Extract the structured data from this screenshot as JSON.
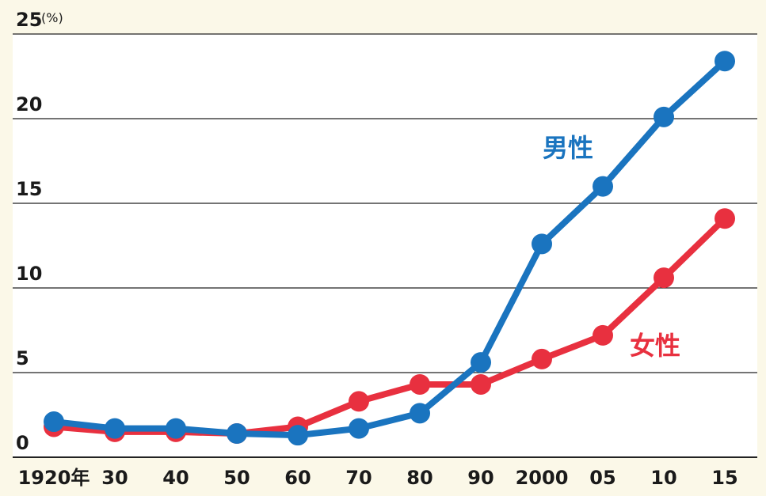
{
  "chart_data": {
    "type": "line",
    "title": "",
    "xlabel": "",
    "ylabel": "",
    "y_unit": "(%)",
    "ylim": [
      0,
      25
    ],
    "y_ticks": [
      "0",
      "5",
      "10",
      "15",
      "20",
      "25"
    ],
    "categories": [
      "1920年",
      "30",
      "40",
      "50",
      "60",
      "70",
      "80",
      "90",
      "2000",
      "05",
      "10",
      "15"
    ],
    "grid": true,
    "series": [
      {
        "name": "男性",
        "color": "#1a74bf",
        "values": [
          2.1,
          1.7,
          1.7,
          1.4,
          1.3,
          1.7,
          2.6,
          5.6,
          12.6,
          16.0,
          20.1,
          23.4
        ]
      },
      {
        "name": "女性",
        "color": "#e8303f",
        "values": [
          1.8,
          1.5,
          1.5,
          1.4,
          1.8,
          3.3,
          4.3,
          4.3,
          5.8,
          7.2,
          10.6,
          14.1
        ]
      }
    ]
  }
}
